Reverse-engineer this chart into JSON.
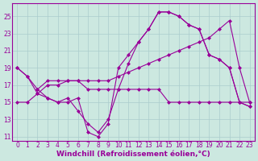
{
  "background_color": "#cce8e0",
  "line_color": "#990099",
  "grid_color": "#aacccc",
  "xlabel": "Windchill (Refroidissement éolien,°C)",
  "xlabel_fontsize": 6.5,
  "tick_fontsize": 5.5,
  "ylabel_ticks": [
    11,
    13,
    15,
    17,
    19,
    21,
    23,
    25
  ],
  "xlim": [
    -0.5,
    23.5
  ],
  "ylim": [
    10.5,
    26.5
  ],
  "series1_x": [
    0,
    1,
    2,
    3,
    4,
    5,
    6,
    7,
    8,
    9,
    10,
    11,
    12,
    13,
    14,
    15,
    16,
    17,
    18,
    19,
    20,
    21,
    22,
    23
  ],
  "series1_y": [
    19,
    18,
    16,
    15.5,
    15,
    15,
    15.5,
    11.5,
    11,
    12.5,
    19,
    20.5,
    22,
    23.5,
    25.5,
    25.5,
    25,
    24,
    23.5,
    20.5,
    20,
    19,
    15,
    14.5
  ],
  "series2_x": [
    0,
    1,
    2,
    3,
    4,
    5,
    6,
    7,
    8,
    9,
    10,
    11,
    12,
    13,
    14,
    15,
    16,
    17,
    18,
    19,
    20,
    21,
    22,
    23
  ],
  "series2_y": [
    19,
    18,
    16.5,
    17.5,
    17.5,
    17.5,
    17.5,
    16.5,
    16.5,
    16.5,
    16.5,
    16.5,
    16.5,
    16.5,
    16.5,
    15,
    15,
    15,
    15,
    15,
    15,
    15,
    15,
    15
  ],
  "series3_x": [
    0,
    1,
    2,
    3,
    4,
    5,
    6,
    7,
    8,
    9,
    10,
    11,
    12,
    13,
    14,
    15,
    16,
    17,
    18,
    19,
    20,
    21,
    22,
    23
  ],
  "series3_y": [
    15,
    15,
    16,
    17,
    17,
    17.5,
    17.5,
    17.5,
    17.5,
    17.5,
    18,
    18.5,
    19,
    19.5,
    20,
    20.5,
    21,
    21.5,
    22,
    22.5,
    23.5,
    24.5,
    19,
    15
  ],
  "series4_x": [
    2,
    3,
    4,
    5,
    6,
    7,
    8,
    9,
    10,
    11,
    12,
    13,
    14,
    15,
    16,
    17,
    18,
    19,
    20,
    21,
    22,
    23
  ],
  "series4_y": [
    16.5,
    15.5,
    15,
    15.5,
    14,
    12.5,
    11.5,
    13,
    16.5,
    19.5,
    22,
    23.5,
    25.5,
    25.5,
    25,
    24,
    23.5,
    20.5,
    20,
    19,
    15,
    14.5
  ]
}
